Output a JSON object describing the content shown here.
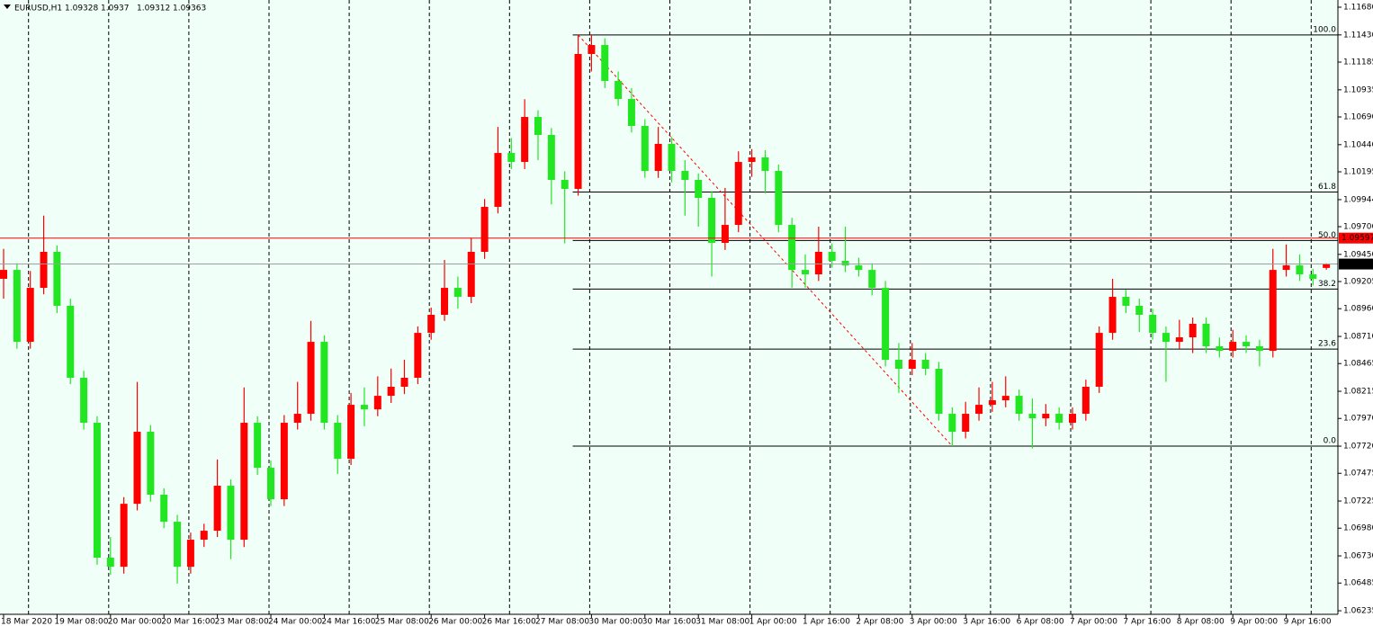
{
  "chart_data": {
    "type": "candlestick",
    "title": "EURUSD,H1",
    "up_color": "#ff0000",
    "down_color": "#22e622",
    "background": "#f0fff8",
    "grid": true,
    "ylim": [
      1.06203,
      1.11745
    ],
    "yticks": [
      {
        "value": 1.1168,
        "label": "1.11680"
      },
      {
        "value": 1.1143,
        "label": "1.11430"
      },
      1.11185,
      1.10935,
      {
        "value": 1.1069,
        "label": "1.10690"
      },
      {
        "value": 1.1044,
        "label": "1.10440"
      },
      1.10195,
      1.09944,
      {
        "value": 1.097,
        "label": "1.09700"
      },
      {
        "value": 1.0945,
        "label": "1.09450"
      },
      1.09205,
      {
        "value": 1.0896,
        "label": "1.08960"
      },
      {
        "value": 1.0871,
        "label": "1.08710"
      },
      1.08465,
      1.08215,
      {
        "value": 1.0797,
        "label": "1.07970"
      },
      {
        "value": 1.0772,
        "label": "1.07720"
      },
      1.07475,
      1.07225,
      {
        "value": 1.0698,
        "label": "1.06980"
      },
      {
        "value": 1.0673,
        "label": "1.06730"
      },
      1.06485,
      1.06235
    ],
    "categories": [
      "18 Mar 2020",
      null,
      null,
      null,
      "19 Mar 08:00",
      null,
      null,
      null,
      "20 Mar 00:00",
      null,
      null,
      null,
      "20 Mar 16:00",
      null,
      null,
      null,
      "23 Mar 08:00",
      null,
      null,
      null,
      "24 Mar 00:00",
      null,
      null,
      null,
      "24 Mar 16:00",
      null,
      null,
      null,
      "25 Mar 08:00",
      null,
      null,
      null,
      "26 Mar 00:00",
      null,
      null,
      null,
      "26 Mar 16:00",
      null,
      null,
      null,
      "27 Mar 08:00",
      null,
      null,
      null,
      "30 Mar 00:00",
      null,
      null,
      null,
      "30 Mar 16:00",
      null,
      null,
      null,
      "31 Mar 08:00",
      null,
      null,
      null,
      "1 Apr 00:00",
      null,
      null,
      null,
      "1 Apr 16:00",
      null,
      null,
      null,
      "2 Apr 08:00",
      null,
      null,
      null,
      "3 Apr 00:00",
      null,
      null,
      null,
      "3 Apr 16:00",
      null,
      null,
      null,
      "6 Apr 08:00",
      null,
      null,
      null,
      "7 Apr 00:00",
      null,
      null,
      null,
      "7 Apr 16:00",
      null,
      null,
      null,
      "8 Apr 08:00",
      null,
      null,
      null,
      "9 Apr 00:00",
      null,
      null,
      null,
      "9 Apr 16:00",
      null,
      null,
      null
    ],
    "candles": [
      [
        1.0923,
        1.095,
        1.0905,
        1.0931
      ],
      [
        1.0931,
        1.0937,
        1.086,
        1.08661
      ],
      [
        1.08661,
        1.093,
        1.086,
        1.09148
      ],
      [
        1.09148,
        1.098,
        1.0909,
        1.09473
      ],
      [
        1.09473,
        1.0953,
        1.0892,
        1.08986
      ],
      [
        1.08986,
        1.0905,
        1.0828,
        1.08337
      ],
      [
        1.08337,
        1.084,
        1.0787,
        1.07931
      ],
      [
        1.07931,
        1.0799,
        1.0665,
        1.06714
      ],
      [
        1.06714,
        1.069,
        1.0656,
        1.06632
      ],
      [
        1.06632,
        1.0726,
        1.0657,
        1.072
      ],
      [
        1.072,
        1.083,
        1.0714,
        1.0785
      ],
      [
        1.0785,
        1.0791,
        1.0722,
        1.07282
      ],
      [
        1.07282,
        1.0734,
        1.0698,
        1.07038
      ],
      [
        1.07038,
        1.071,
        1.0648,
        1.06632
      ],
      [
        1.06632,
        1.0694,
        1.0657,
        1.06876
      ],
      [
        1.06876,
        1.0702,
        1.0681,
        1.06957
      ],
      [
        1.06957,
        1.076,
        1.069,
        1.07363
      ],
      [
        1.07363,
        1.0742,
        1.067,
        1.06876
      ],
      [
        1.06876,
        1.0825,
        1.0681,
        1.07931
      ],
      [
        1.07931,
        1.0799,
        1.0746,
        1.07525
      ],
      [
        1.07525,
        1.0759,
        1.0718,
        1.07241
      ],
      [
        1.07241,
        1.08,
        1.0718,
        1.07931
      ],
      [
        1.07931,
        1.083,
        1.0787,
        1.08012
      ],
      [
        1.08012,
        1.0885,
        1.0795,
        1.08661
      ],
      [
        1.08661,
        1.0872,
        1.0787,
        1.07931
      ],
      [
        1.07931,
        1.08,
        1.0747,
        1.07606
      ],
      [
        1.07606,
        1.082,
        1.0755,
        1.08093
      ],
      [
        1.08093,
        1.0825,
        1.079,
        1.08052
      ],
      [
        1.08052,
        1.0835,
        1.0799,
        1.08174
      ],
      [
        1.08174,
        1.0842,
        1.0811,
        1.08256
      ],
      [
        1.08256,
        1.085,
        1.0819,
        1.08337
      ],
      [
        1.08337,
        1.088,
        1.0828,
        1.08742
      ],
      [
        1.08742,
        1.0897,
        1.0868,
        1.08905
      ],
      [
        1.08905,
        1.094,
        1.0885,
        1.09148
      ],
      [
        1.09148,
        1.0925,
        1.0896,
        1.09067
      ],
      [
        1.09067,
        1.096,
        1.0901,
        1.09473
      ],
      [
        1.09473,
        1.0995,
        1.0941,
        1.09879
      ],
      [
        1.09879,
        1.106,
        1.0982,
        1.10365
      ],
      [
        1.10365,
        1.105,
        1.1022,
        1.10284
      ],
      [
        1.10284,
        1.1085,
        1.1022,
        1.1069
      ],
      [
        1.1069,
        1.1075,
        1.103,
        1.10528
      ],
      [
        1.10528,
        1.1059,
        1.099,
        1.10122
      ],
      [
        1.10122,
        1.102,
        1.0955,
        1.10041
      ],
      [
        1.10041,
        1.1143,
        1.0998,
        1.11258
      ],
      [
        1.11258,
        1.1143,
        1.111,
        1.11339
      ],
      [
        1.11339,
        1.114,
        1.1095,
        1.11015
      ],
      [
        1.11015,
        1.111,
        1.1079,
        1.10852
      ],
      [
        1.10852,
        1.1095,
        1.1055,
        1.10609
      ],
      [
        1.10609,
        1.1067,
        1.1014,
        1.10203
      ],
      [
        1.10203,
        1.106,
        1.1014,
        1.10447
      ],
      [
        1.10447,
        1.1051,
        1.101,
        1.10203
      ],
      [
        1.10203,
        1.103,
        1.098,
        1.10122
      ],
      [
        1.10122,
        1.1018,
        1.097,
        1.0996
      ],
      [
        1.0996,
        1.1002,
        1.0925,
        1.09554
      ],
      [
        1.09554,
        1.1005,
        1.0949,
        1.09716
      ],
      [
        1.09716,
        1.1038,
        1.0965,
        1.10284
      ],
      [
        1.10284,
        1.104,
        1.1015,
        1.10325
      ],
      [
        1.10325,
        1.1039,
        1.1,
        1.10203
      ],
      [
        1.10203,
        1.1026,
        1.0965,
        1.09716
      ],
      [
        1.09716,
        1.0978,
        1.0915,
        1.0931
      ],
      [
        1.0931,
        1.0945,
        1.0915,
        1.0927
      ],
      [
        1.0927,
        1.097,
        1.0921,
        1.09473
      ],
      [
        1.09473,
        1.0955,
        1.0933,
        1.09392
      ],
      [
        1.09392,
        1.097,
        1.0929,
        1.09351
      ],
      [
        1.09351,
        1.0942,
        1.0925,
        1.0931
      ],
      [
        1.0931,
        1.0937,
        1.0908,
        1.09148
      ],
      [
        1.09148,
        1.0921,
        1.0844,
        1.08499
      ],
      [
        1.08499,
        1.0865,
        1.082,
        1.08418
      ],
      [
        1.08418,
        1.0865,
        1.0836,
        1.08499
      ],
      [
        1.08499,
        1.0856,
        1.0836,
        1.08418
      ],
      [
        1.08418,
        1.0848,
        1.0795,
        1.08012
      ],
      [
        1.08012,
        1.0807,
        1.0772,
        1.0785
      ],
      [
        1.0785,
        1.0812,
        1.0779,
        1.08012
      ],
      [
        1.08012,
        1.0825,
        1.0795,
        1.08093
      ],
      [
        1.08093,
        1.083,
        1.0803,
        1.08134
      ],
      [
        1.08134,
        1.0835,
        1.0807,
        1.08174
      ],
      [
        1.08174,
        1.0823,
        1.0795,
        1.08012
      ],
      [
        1.08012,
        1.0815,
        1.077,
        1.07971
      ],
      [
        1.07971,
        1.081,
        1.079,
        1.08012
      ],
      [
        1.08012,
        1.0807,
        1.0787,
        1.07931
      ],
      [
        1.07931,
        1.0807,
        1.0787,
        1.08012
      ],
      [
        1.08012,
        1.0832,
        1.0795,
        1.08256
      ],
      [
        1.08256,
        1.088,
        1.082,
        1.08742
      ],
      [
        1.08742,
        1.0923,
        1.0868,
        1.09067
      ],
      [
        1.09067,
        1.0913,
        1.0892,
        1.08986
      ],
      [
        1.08986,
        1.0905,
        1.0875,
        1.08905
      ],
      [
        1.08905,
        1.0896,
        1.0868,
        1.08742
      ],
      [
        1.08742,
        1.088,
        1.083,
        1.08661
      ],
      [
        1.08661,
        1.0886,
        1.086,
        1.08702
      ],
      [
        1.08702,
        1.0888,
        1.0856,
        1.08824
      ],
      [
        1.08824,
        1.0888,
        1.0856,
        1.08621
      ],
      [
        1.08621,
        1.087,
        1.0852,
        1.0858
      ],
      [
        1.0858,
        1.0877,
        1.0852,
        1.08661
      ],
      [
        1.08661,
        1.0872,
        1.0856,
        1.08621
      ],
      [
        1.08621,
        1.0868,
        1.0844,
        1.0858
      ],
      [
        1.0858,
        1.095,
        1.0852,
        1.0931
      ],
      [
        1.0931,
        1.0954,
        1.0925,
        1.09351
      ],
      [
        1.09351,
        1.0945,
        1.0921,
        1.0927
      ],
      [
        1.0927,
        1.0932,
        1.0917,
        1.09229
      ],
      [
        1.09328,
        1.0937,
        1.09312,
        1.09363
      ]
    ],
    "hlines": [
      {
        "value": 1.09597,
        "color": "#ff0000"
      }
    ],
    "bid_line_color": "#9aa0a0",
    "fibonacci": {
      "high": 1.1143,
      "low": 1.0772,
      "color": "#000000",
      "trend_color": "#ff0000",
      "levels": [
        {
          "value": 100,
          "label": "100.0"
        },
        {
          "value": 61.8,
          "label": "61.8"
        },
        {
          "value": 50,
          "label": "50.0"
        },
        {
          "value": 38.2,
          "label": "38.2"
        },
        {
          "value": 23.6,
          "label": "23.6"
        },
        {
          "value": 0,
          "label": "0.0"
        }
      ]
    }
  }
}
